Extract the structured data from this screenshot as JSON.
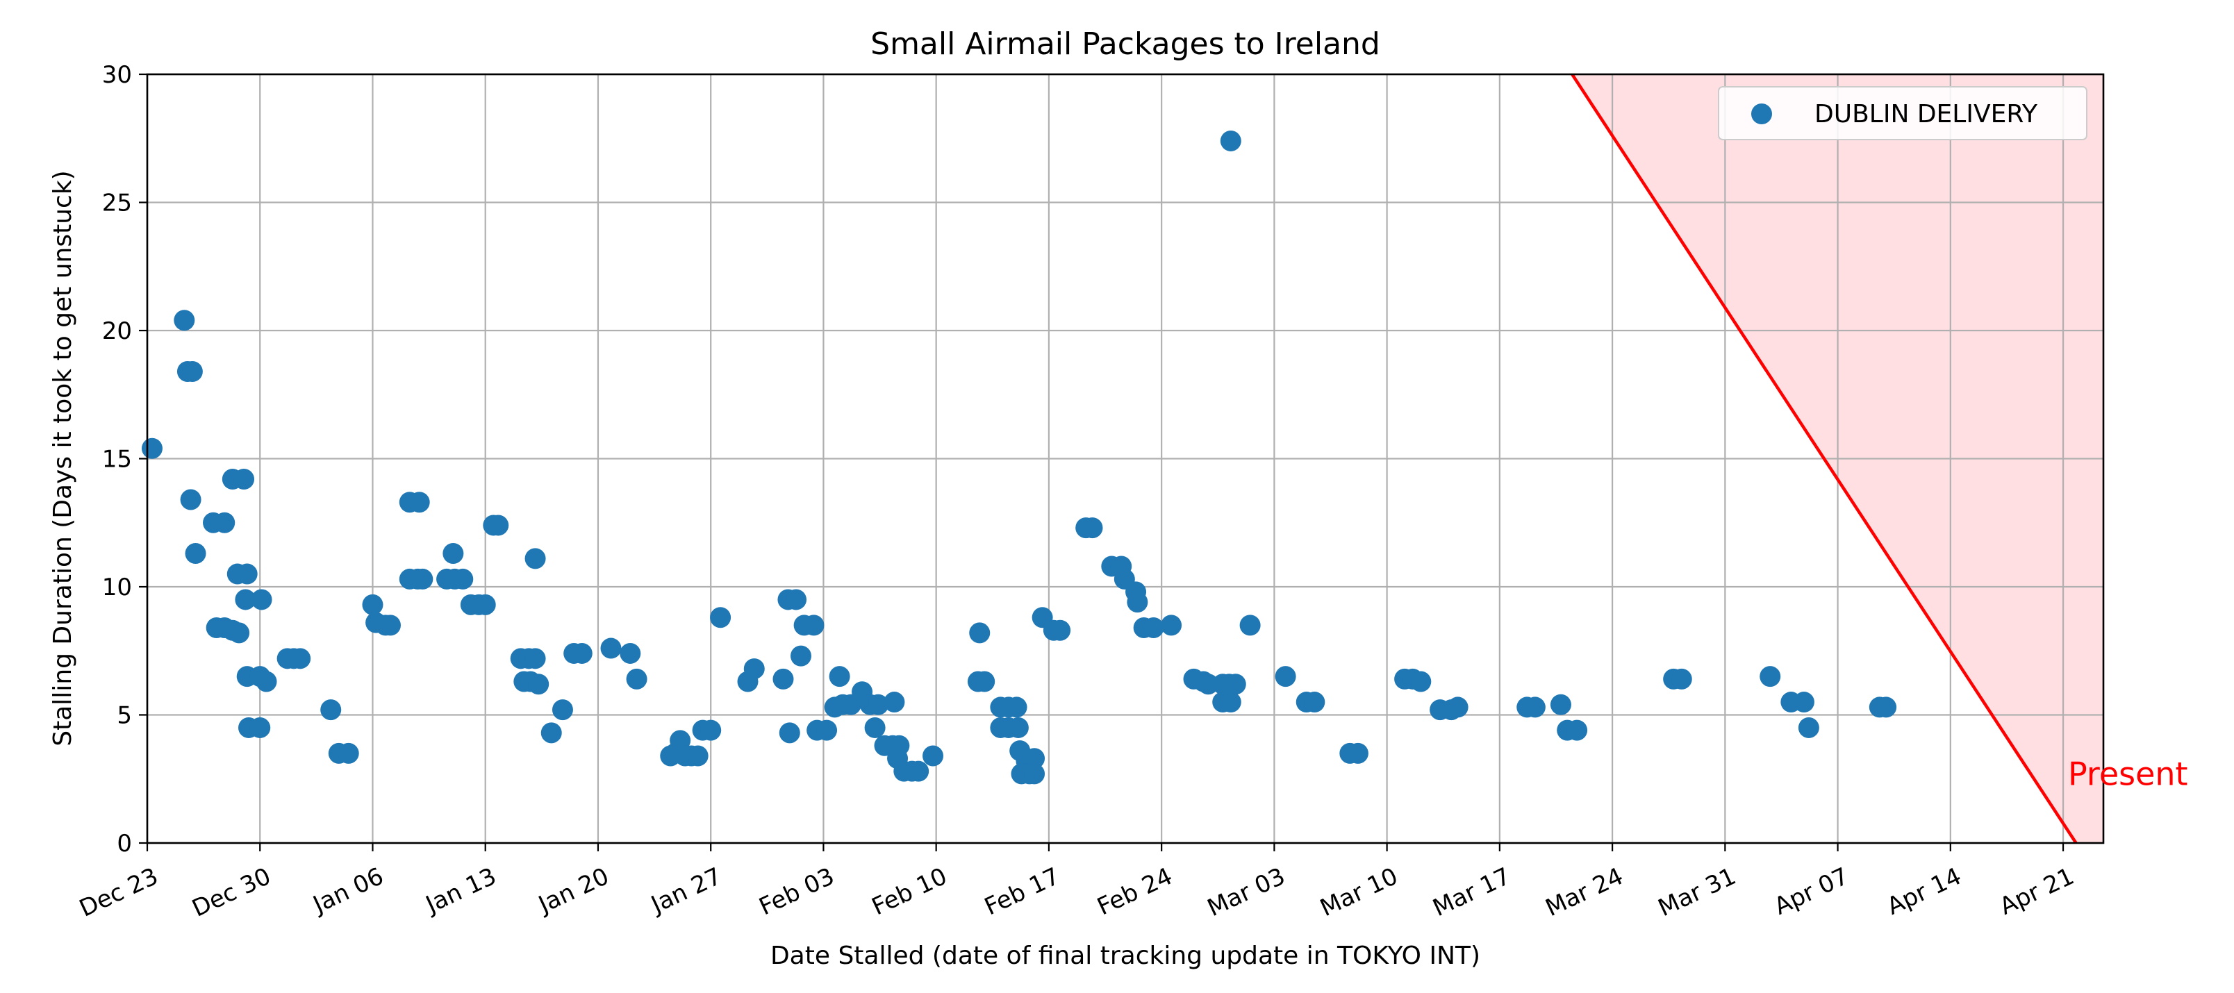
{
  "chart_data": {
    "type": "scatter",
    "title": "Small Airmail Packages to Ireland",
    "xlabel": "Date Stalled (date of final tracking update in TOKYO INT)",
    "ylabel": "Stalling Duration (Days it took to get unstuck)",
    "xlim": [
      "2024-12-23",
      "2025-04-23.5"
    ],
    "ylim": [
      0,
      30
    ],
    "x_ticks": [
      {
        "date": "2024-12-23",
        "label": "Dec 23"
      },
      {
        "date": "2024-12-30",
        "label": "Dec 30"
      },
      {
        "date": "2025-01-06",
        "label": "Jan 06"
      },
      {
        "date": "2025-01-13",
        "label": "Jan 13"
      },
      {
        "date": "2025-01-20",
        "label": "Jan 20"
      },
      {
        "date": "2025-01-27",
        "label": "Jan 27"
      },
      {
        "date": "2025-02-03",
        "label": "Feb 03"
      },
      {
        "date": "2025-02-10",
        "label": "Feb 10"
      },
      {
        "date": "2025-02-17",
        "label": "Feb 17"
      },
      {
        "date": "2025-02-24",
        "label": "Feb 24"
      },
      {
        "date": "2025-03-03",
        "label": "Mar 03"
      },
      {
        "date": "2025-03-10",
        "label": "Mar 10"
      },
      {
        "date": "2025-03-17",
        "label": "Mar 17"
      },
      {
        "date": "2025-03-24",
        "label": "Mar 24"
      },
      {
        "date": "2025-03-31",
        "label": "Mar 31"
      },
      {
        "date": "2025-04-07",
        "label": "Apr 07"
      },
      {
        "date": "2025-04-14",
        "label": "Apr 14"
      },
      {
        "date": "2025-04-21",
        "label": "Apr 21"
      }
    ],
    "y_ticks": [
      0,
      5,
      10,
      15,
      20,
      25,
      30
    ],
    "grid": true,
    "legend_position": "top-right",
    "series": [
      {
        "name": "DUBLIN DELIVERY",
        "color": "#1f77b4",
        "points": [
          [
            "2024-12-23.3",
            15.4
          ],
          [
            "2024-12-25.3",
            20.4
          ],
          [
            "2024-12-25.5",
            18.4
          ],
          [
            "2024-12-25.8",
            18.4
          ],
          [
            "2024-12-25.7",
            13.4
          ],
          [
            "2024-12-26.0",
            11.3
          ],
          [
            "2024-12-27.1",
            12.5
          ],
          [
            "2024-12-27.8",
            12.5
          ],
          [
            "2024-12-27.3",
            8.4
          ],
          [
            "2024-12-27.8",
            8.4
          ],
          [
            "2024-12-28.3",
            8.3
          ],
          [
            "2024-12-28.7",
            8.2
          ],
          [
            "2024-12-28.3",
            14.2
          ],
          [
            "2024-12-29.0",
            14.2
          ],
          [
            "2024-12-28.6",
            10.5
          ],
          [
            "2024-12-29.2",
            10.5
          ],
          [
            "2024-12-29.1",
            9.5
          ],
          [
            "2024-12-30.1",
            9.5
          ],
          [
            "2024-12-29.2",
            6.5
          ],
          [
            "2024-12-30.0",
            6.5
          ],
          [
            "2024-12-30.4",
            6.3
          ],
          [
            "2024-12-29.3",
            4.5
          ],
          [
            "2024-12-30.0",
            4.5
          ],
          [
            "2024-12-31.7",
            7.2
          ],
          [
            "2025-01-01.1",
            7.2
          ],
          [
            "2025-01-01.5",
            7.2
          ],
          [
            "2025-01-03.4",
            5.2
          ],
          [
            "2025-01-03.9",
            3.5
          ],
          [
            "2025-01-04.5",
            3.5
          ],
          [
            "2025-01-06.0",
            9.3
          ],
          [
            "2025-01-06.2",
            8.6
          ],
          [
            "2025-01-06.8",
            8.5
          ],
          [
            "2025-01-07.1",
            8.5
          ],
          [
            "2025-01-08.3",
            13.3
          ],
          [
            "2025-01-08.9",
            13.3
          ],
          [
            "2025-01-08.3",
            10.3
          ],
          [
            "2025-01-08.8",
            10.3
          ],
          [
            "2025-01-09.1",
            10.3
          ],
          [
            "2025-01-10.6",
            10.3
          ],
          [
            "2025-01-11.1",
            10.3
          ],
          [
            "2025-01-11.6",
            10.3
          ],
          [
            "2025-01-11.0",
            11.3
          ],
          [
            "2025-01-12.1",
            9.3
          ],
          [
            "2025-01-12.6",
            9.3
          ],
          [
            "2025-01-13.0",
            9.3
          ],
          [
            "2025-01-13.5",
            12.4
          ],
          [
            "2025-01-13.8",
            12.4
          ],
          [
            "2025-01-15.2",
            7.2
          ],
          [
            "2025-01-15.7",
            7.2
          ],
          [
            "2025-01-16.1",
            7.2
          ],
          [
            "2025-01-15.4",
            6.3
          ],
          [
            "2025-01-15.8",
            6.3
          ],
          [
            "2025-01-16.3",
            6.2
          ],
          [
            "2025-01-16.1",
            11.1
          ],
          [
            "2025-01-17.1",
            4.3
          ],
          [
            "2025-01-17.8",
            5.2
          ],
          [
            "2025-01-18.5",
            7.4
          ],
          [
            "2025-01-19.0",
            7.4
          ],
          [
            "2025-01-20.8",
            7.6
          ],
          [
            "2025-01-22.0",
            7.4
          ],
          [
            "2025-01-22.4",
            6.4
          ],
          [
            "2025-01-24.5",
            3.4
          ],
          [
            "2025-01-24.8",
            3.5
          ],
          [
            "2025-01-25.1",
            4.0
          ],
          [
            "2025-01-25.4",
            3.4
          ],
          [
            "2025-01-25.8",
            3.4
          ],
          [
            "2025-01-26.2",
            3.4
          ],
          [
            "2025-01-26.5",
            4.4
          ],
          [
            "2025-01-27.0",
            4.4
          ],
          [
            "2025-01-27.6",
            8.8
          ],
          [
            "2025-01-29.3",
            6.3
          ],
          [
            "2025-01-29.7",
            6.8
          ],
          [
            "2025-01-31.5",
            6.4
          ],
          [
            "2025-01-31.8",
            9.5
          ],
          [
            "2025-02-01.3",
            9.5
          ],
          [
            "2025-01-31.9",
            4.3
          ],
          [
            "2025-02-01.6",
            7.3
          ],
          [
            "2025-02-01.8",
            8.5
          ],
          [
            "2025-02-02.4",
            8.5
          ],
          [
            "2025-02-02.6",
            4.4
          ],
          [
            "2025-02-03.2",
            4.4
          ],
          [
            "2025-02-03.7",
            5.3
          ],
          [
            "2025-02-04.0",
            6.5
          ],
          [
            "2025-02-04.2",
            5.4
          ],
          [
            "2025-02-04.7",
            5.4
          ],
          [
            "2025-02-05.4",
            5.9
          ],
          [
            "2025-02-05.9",
            5.4
          ],
          [
            "2025-02-06.4",
            5.4
          ],
          [
            "2025-02-06.2",
            4.5
          ],
          [
            "2025-02-06.8",
            3.8
          ],
          [
            "2025-02-07.3",
            3.8
          ],
          [
            "2025-02-07.7",
            3.8
          ],
          [
            "2025-02-07.4",
            5.5
          ],
          [
            "2025-02-07.6",
            3.3
          ],
          [
            "2025-02-08.0",
            2.8
          ],
          [
            "2025-02-08.5",
            2.8
          ],
          [
            "2025-02-08.9",
            2.8
          ],
          [
            "2025-02-09.8",
            3.4
          ],
          [
            "2025-02-12.6",
            6.3
          ],
          [
            "2025-02-13.0",
            6.3
          ],
          [
            "2025-02-12.7",
            8.2
          ],
          [
            "2025-02-14.0",
            5.3
          ],
          [
            "2025-02-14.5",
            5.3
          ],
          [
            "2025-02-15.0",
            5.3
          ],
          [
            "2025-02-14.0",
            4.5
          ],
          [
            "2025-02-14.5",
            4.5
          ],
          [
            "2025-02-15.1",
            4.5
          ],
          [
            "2025-02-15.2",
            3.6
          ],
          [
            "2025-02-15.6",
            3.2
          ],
          [
            "2025-02-16.1",
            3.3
          ],
          [
            "2025-02-15.3",
            2.7
          ],
          [
            "2025-02-15.8",
            2.7
          ],
          [
            "2025-02-16.1",
            2.7
          ],
          [
            "2025-02-16.6",
            8.8
          ],
          [
            "2025-02-17.3",
            8.3
          ],
          [
            "2025-02-17.7",
            8.3
          ],
          [
            "2025-02-19.3",
            12.3
          ],
          [
            "2025-02-19.7",
            12.3
          ],
          [
            "2025-02-20.9",
            10.8
          ],
          [
            "2025-02-21.5",
            10.8
          ],
          [
            "2025-02-21.7",
            10.3
          ],
          [
            "2025-02-22.4",
            9.8
          ],
          [
            "2025-02-22.5",
            9.4
          ],
          [
            "2025-02-22.9",
            8.4
          ],
          [
            "2025-02-23.5",
            8.4
          ],
          [
            "2025-02-24.6",
            8.5
          ],
          [
            "2025-02-26.0",
            6.4
          ],
          [
            "2025-02-26.6",
            6.3
          ],
          [
            "2025-02-26.9",
            6.2
          ],
          [
            "2025-02-27.8",
            5.5
          ],
          [
            "2025-02-28.3",
            5.5
          ],
          [
            "2025-02-28.2",
            6.2
          ],
          [
            "2025-02-28.6",
            6.2
          ],
          [
            "2025-02-27.8",
            6.2
          ],
          [
            "2025-02-28.3",
            27.4
          ],
          [
            "2025-03-01.5",
            8.5
          ],
          [
            "2025-03-03.7",
            6.5
          ],
          [
            "2025-03-05.0",
            5.5
          ],
          [
            "2025-03-05.5",
            5.5
          ],
          [
            "2025-03-07.7",
            3.5
          ],
          [
            "2025-03-08.2",
            3.5
          ],
          [
            "2025-03-11.1",
            6.4
          ],
          [
            "2025-03-11.6",
            6.4
          ],
          [
            "2025-03-12.1",
            6.3
          ],
          [
            "2025-03-13.3",
            5.2
          ],
          [
            "2025-03-14.0",
            5.2
          ],
          [
            "2025-03-14.4",
            5.3
          ],
          [
            "2025-03-18.7",
            5.3
          ],
          [
            "2025-03-19.2",
            5.3
          ],
          [
            "2025-03-20.8",
            5.4
          ],
          [
            "2025-03-21.2",
            4.4
          ],
          [
            "2025-03-21.8",
            4.4
          ],
          [
            "2025-03-27.8",
            6.4
          ],
          [
            "2025-03-28.3",
            6.4
          ],
          [
            "2025-04-02.8",
            6.5
          ],
          [
            "2025-04-04.1",
            5.5
          ],
          [
            "2025-04-04.9",
            5.5
          ],
          [
            "2025-04-05.2",
            4.5
          ],
          [
            "2025-04-09.6",
            5.3
          ],
          [
            "2025-04-10.0",
            5.3
          ]
        ]
      }
    ],
    "deadline_line": {
      "color": "#ff0000",
      "fill_color": "#ffdfe2",
      "points": [
        [
          "2025-03-21.5",
          30
        ],
        [
          "2025-04-21.8",
          0
        ]
      ]
    },
    "annotations": [
      {
        "text": "Present",
        "x": "2025-04-21.3",
        "y": 2.7,
        "color": "#ff0000"
      }
    ]
  }
}
